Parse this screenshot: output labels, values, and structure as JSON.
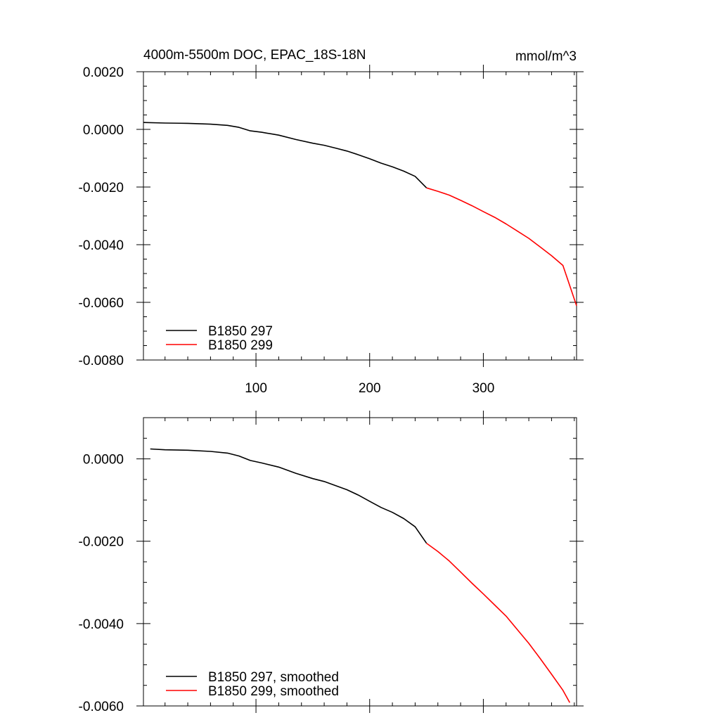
{
  "chart_data": [
    {
      "type": "line",
      "title": "4000m-5500m DOC, EPAC_18S-18N",
      "units": "mmol/m^3",
      "xlim": [
        1,
        382
      ],
      "ylim": [
        -0.008,
        0.002
      ],
      "x_ticks": [
        100,
        200,
        300
      ],
      "x_tick_labels": [
        "100",
        "200",
        "300"
      ],
      "y_ticks": [
        0.002,
        0.0,
        -0.002,
        -0.004,
        -0.006,
        -0.008
      ],
      "y_tick_labels": [
        "0.0020",
        "0.0000",
        "-0.0020",
        "-0.0040",
        "-0.0060",
        "-0.0080"
      ],
      "grid": false,
      "legend_position": "bottom-left",
      "series": [
        {
          "name": "B1850 297",
          "color": "#000000",
          "x": [
            1,
            20,
            40,
            60,
            75,
            85,
            95,
            105,
            120,
            135,
            150,
            160,
            170,
            180,
            190,
            200,
            210,
            220,
            230,
            240,
            250
          ],
          "y": [
            0.00024,
            0.00022,
            0.00021,
            0.00018,
            0.00014,
            7e-05,
            -5e-05,
            -0.0001,
            -0.0002,
            -0.00035,
            -0.00048,
            -0.00055,
            -0.00065,
            -0.00075,
            -0.00088,
            -0.00102,
            -0.00117,
            -0.0013,
            -0.00145,
            -0.00163,
            -0.00203
          ]
        },
        {
          "name": "B1850 299",
          "color": "#ff0000",
          "x": [
            250,
            260,
            270,
            280,
            290,
            300,
            310,
            320,
            330,
            340,
            350,
            360,
            370,
            382
          ],
          "y": [
            -0.00203,
            -0.00215,
            -0.00228,
            -0.00246,
            -0.00265,
            -0.00285,
            -0.00305,
            -0.00328,
            -0.00353,
            -0.00378,
            -0.00408,
            -0.00438,
            -0.00472,
            -0.00612
          ]
        }
      ]
    },
    {
      "type": "line",
      "xlim": [
        1,
        382
      ],
      "ylim": [
        -0.006,
        0.001
      ],
      "x_ticks": [
        100,
        200,
        300
      ],
      "y_ticks": [
        0.0,
        -0.002,
        -0.004,
        -0.006
      ],
      "y_tick_labels": [
        "0.0000",
        "-0.0020",
        "-0.0040",
        "-0.0060"
      ],
      "grid": false,
      "legend_position": "bottom-left",
      "series": [
        {
          "name": "B1850 297, smoothed",
          "color": "#000000",
          "x": [
            7,
            20,
            40,
            60,
            75,
            85,
            95,
            105,
            120,
            135,
            150,
            160,
            170,
            180,
            190,
            200,
            210,
            220,
            230,
            240,
            250
          ],
          "y": [
            0.00024,
            0.00022,
            0.00021,
            0.00018,
            0.00014,
            7e-05,
            -4e-05,
            -0.0001,
            -0.0002,
            -0.00035,
            -0.00048,
            -0.00055,
            -0.00065,
            -0.00075,
            -0.00088,
            -0.00103,
            -0.00118,
            -0.0013,
            -0.00145,
            -0.00165,
            -0.00205
          ]
        },
        {
          "name": "B1850 299, smoothed",
          "color": "#ff0000",
          "x": [
            250,
            260,
            270,
            280,
            290,
            300,
            310,
            320,
            330,
            340,
            350,
            360,
            370,
            376
          ],
          "y": [
            -0.00205,
            -0.00225,
            -0.00248,
            -0.00275,
            -0.00302,
            -0.00328,
            -0.00355,
            -0.00382,
            -0.00415,
            -0.00448,
            -0.00485,
            -0.00523,
            -0.00562,
            -0.00592
          ]
        }
      ]
    }
  ]
}
